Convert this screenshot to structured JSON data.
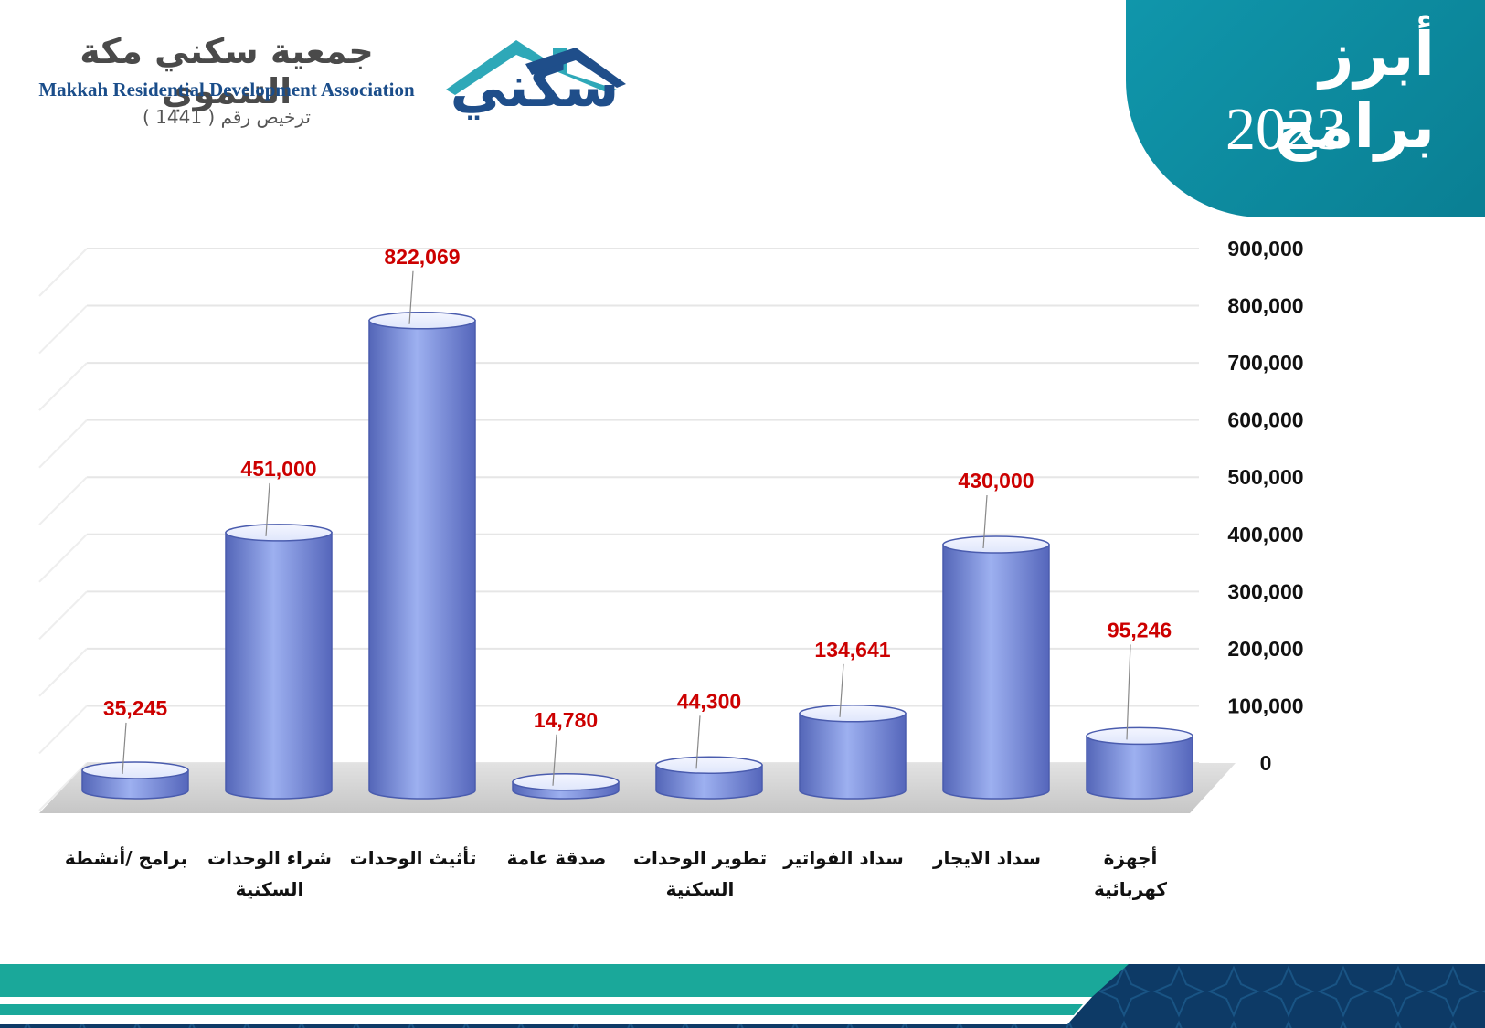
{
  "header": {
    "title": "أبرز برامج",
    "year": "2023"
  },
  "logo": {
    "arabic_name": "جمعية سكني مكة التنموي",
    "english_name": "Makkah Residential Development Association",
    "license": "ترخيص رقم ( 1441 )",
    "mark_word": "سكني",
    "icon": "house-roof-icon"
  },
  "colors": {
    "accent_teal": "#0a8ca0",
    "bar_blue": "#7f95e6",
    "value_red": "#cc0000",
    "footer_teal": "#1aa89a",
    "footer_navy": "#0d3a66"
  },
  "chart_data": {
    "type": "bar",
    "style": "3d-cylinder",
    "categories": [
      "برامج /أنشطة",
      "شراء الوحدات السكنية",
      "تأثيث الوحدات",
      "صدقة عامة",
      "تطوير الوحدات السكنية",
      "سداد الفواتير",
      "سداد الايجار",
      "أجهزة كهربائية"
    ],
    "category_lines": [
      [
        "برامج /أنشطة"
      ],
      [
        "شراء الوحدات",
        "السكنية"
      ],
      [
        "تأثيث الوحدات"
      ],
      [
        "صدقة عامة"
      ],
      [
        "تطوير الوحدات",
        "السكنية"
      ],
      [
        "سداد الفواتير"
      ],
      [
        "سداد الايجار"
      ],
      [
        "أجهزة",
        "كهربائية"
      ]
    ],
    "values": [
      35245,
      451000,
      822069,
      14780,
      44300,
      134641,
      430000,
      95246
    ],
    "value_labels": [
      "35,245",
      "451,000",
      "822,069",
      "14,780",
      "44,300",
      "134,641",
      "430,000",
      "95,246"
    ],
    "ylim": [
      0,
      900000
    ],
    "yticks": [
      0,
      100000,
      200000,
      300000,
      400000,
      500000,
      600000,
      700000,
      800000,
      900000
    ],
    "ytick_labels": [
      "0",
      "100,000",
      "200,000",
      "300,000",
      "400,000",
      "500,000",
      "600,000",
      "700,000",
      "800,000",
      "900,000"
    ],
    "y_axis_position": "right",
    "grid": true,
    "legend": "none"
  }
}
